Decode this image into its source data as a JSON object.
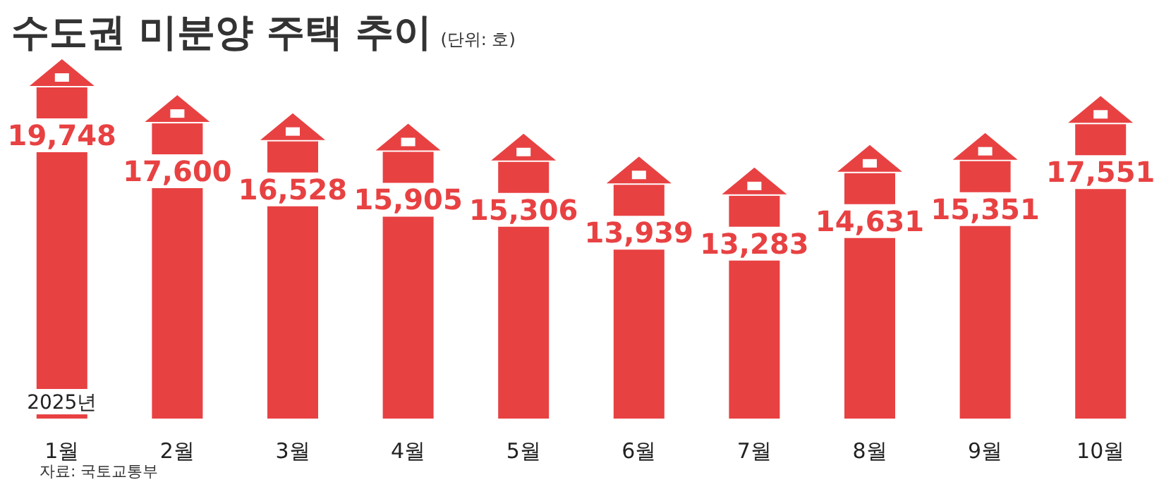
{
  "chart_data": {
    "type": "bar",
    "title": "수도권 미분양 주택 추이",
    "subtitle": "(단위: 호)",
    "categories": [
      "1월",
      "2월",
      "3월",
      "4월",
      "5월",
      "6월",
      "7월",
      "8월",
      "9월",
      "10월"
    ],
    "values": [
      19748,
      17600,
      16528,
      15905,
      15306,
      13939,
      13283,
      14631,
      15351,
      17551
    ],
    "value_labels": [
      "19,748",
      "17,600",
      "16,528",
      "15,905",
      "15,306",
      "13,939",
      "13,283",
      "14,631",
      "15,351",
      "17,551"
    ],
    "color": "#e84142",
    "annotations": [
      "2025년",
      "자료: 국토교통부"
    ]
  }
}
